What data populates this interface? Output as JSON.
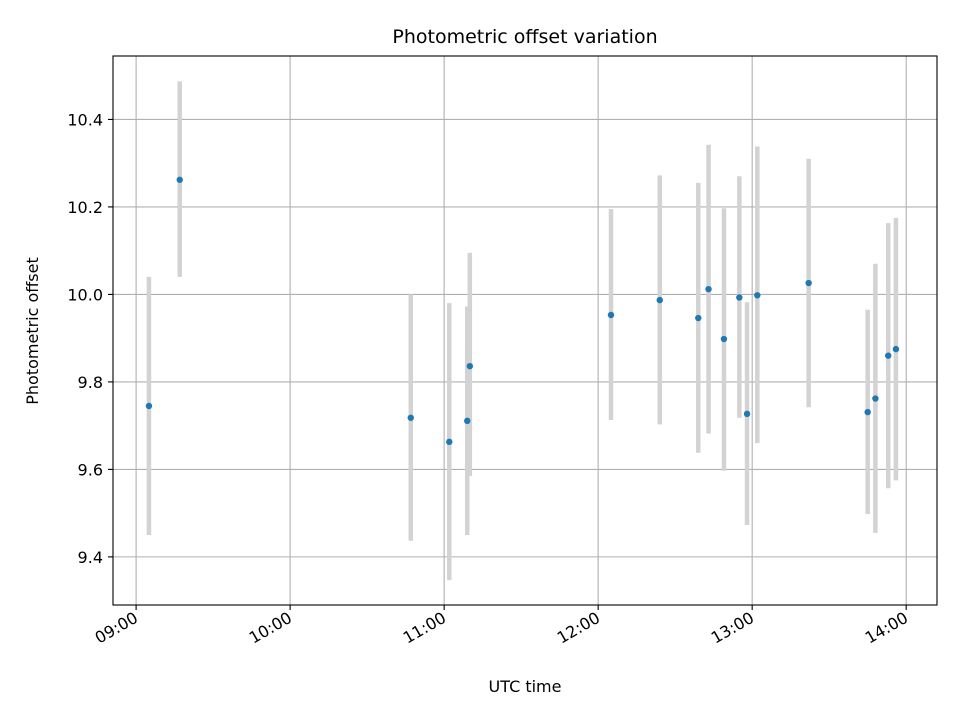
{
  "chart_data": {
    "type": "scatter",
    "title": "Photometric offset variation",
    "xlabel": "UTC time",
    "ylabel": "Photometric offset",
    "x_ticks": [
      "09:00",
      "10:00",
      "11:00",
      "12:00",
      "13:00",
      "14:00"
    ],
    "x_tick_hours": [
      9,
      10,
      11,
      12,
      13,
      14
    ],
    "y_ticks": [
      9.4,
      9.6,
      9.8,
      10.0,
      10.2,
      10.4
    ],
    "y_tick_labels": [
      "9.4",
      "9.6",
      "9.8",
      "10.0",
      "10.2",
      "10.4"
    ],
    "xlim_hours": [
      8.85,
      14.2
    ],
    "ylim": [
      9.29,
      10.545
    ],
    "grid": true,
    "point_color": "#1f77b4",
    "errorbar_color": "#d3d3d3",
    "series": [
      {
        "points": [
          {
            "x": "09:05",
            "y": 9.745,
            "ylow": 9.45,
            "yhigh": 10.04
          },
          {
            "x": "09:17",
            "y": 10.262,
            "ylow": 10.04,
            "yhigh": 10.487
          },
          {
            "x": "10:47",
            "y": 9.718,
            "ylow": 9.437,
            "yhigh": 10.0
          },
          {
            "x": "11:02",
            "y": 9.663,
            "ylow": 9.347,
            "yhigh": 9.98
          },
          {
            "x": "11:09",
            "y": 9.711,
            "ylow": 9.45,
            "yhigh": 9.972
          },
          {
            "x": "11:10",
            "y": 9.836,
            "ylow": 9.585,
            "yhigh": 10.095
          },
          {
            "x": "12:05",
            "y": 9.953,
            "ylow": 9.713,
            "yhigh": 10.195
          },
          {
            "x": "12:24",
            "y": 9.987,
            "ylow": 9.703,
            "yhigh": 10.272
          },
          {
            "x": "12:39",
            "y": 9.946,
            "ylow": 9.638,
            "yhigh": 10.255
          },
          {
            "x": "12:43",
            "y": 10.012,
            "ylow": 9.682,
            "yhigh": 10.342
          },
          {
            "x": "12:49",
            "y": 9.898,
            "ylow": 9.597,
            "yhigh": 10.197
          },
          {
            "x": "12:55",
            "y": 9.993,
            "ylow": 9.718,
            "yhigh": 10.27
          },
          {
            "x": "12:58",
            "y": 9.727,
            "ylow": 9.473,
            "yhigh": 9.982
          },
          {
            "x": "13:02",
            "y": 9.998,
            "ylow": 9.66,
            "yhigh": 10.338
          },
          {
            "x": "13:22",
            "y": 10.026,
            "ylow": 9.742,
            "yhigh": 10.31
          },
          {
            "x": "13:45",
            "y": 9.731,
            "ylow": 9.498,
            "yhigh": 9.965
          },
          {
            "x": "13:48",
            "y": 9.762,
            "ylow": 9.455,
            "yhigh": 10.07
          },
          {
            "x": "13:53",
            "y": 9.86,
            "ylow": 9.557,
            "yhigh": 10.163
          },
          {
            "x": "13:56",
            "y": 9.875,
            "ylow": 9.575,
            "yhigh": 10.175
          }
        ]
      }
    ]
  }
}
